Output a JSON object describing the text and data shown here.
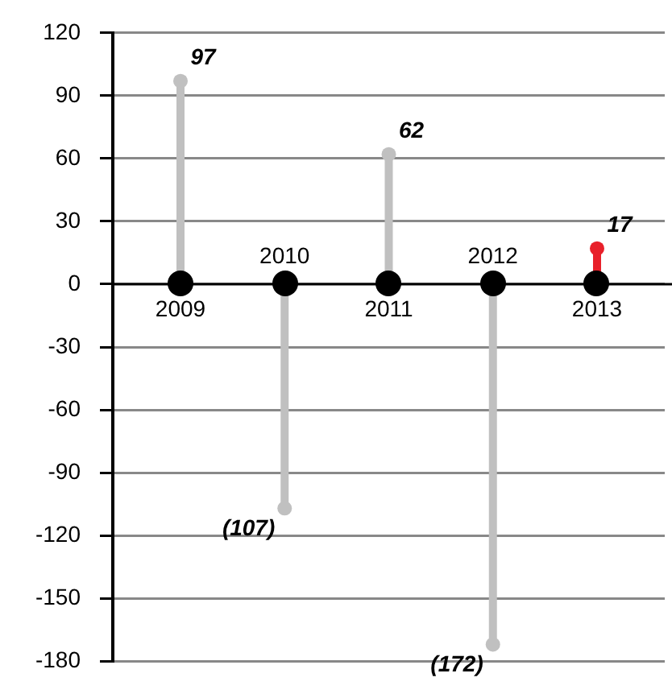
{
  "chart_data": {
    "type": "lollipop",
    "categories": [
      "2009",
      "2010",
      "2011",
      "2012",
      "2013"
    ],
    "values": [
      97,
      -107,
      62,
      -172,
      17
    ],
    "colors": [
      "#c0c0c0",
      "#c0c0c0",
      "#c0c0c0",
      "#c0c0c0",
      "#e8202a"
    ],
    "value_labels": [
      "97",
      "(107)",
      "62",
      "(172)",
      "17"
    ],
    "ylim": [
      -180,
      120
    ],
    "yticks": [
      -180,
      -150,
      -120,
      -90,
      -60,
      -30,
      0,
      30,
      60,
      90,
      120
    ],
    "grid": "y",
    "legend": false,
    "marker": "circle"
  }
}
